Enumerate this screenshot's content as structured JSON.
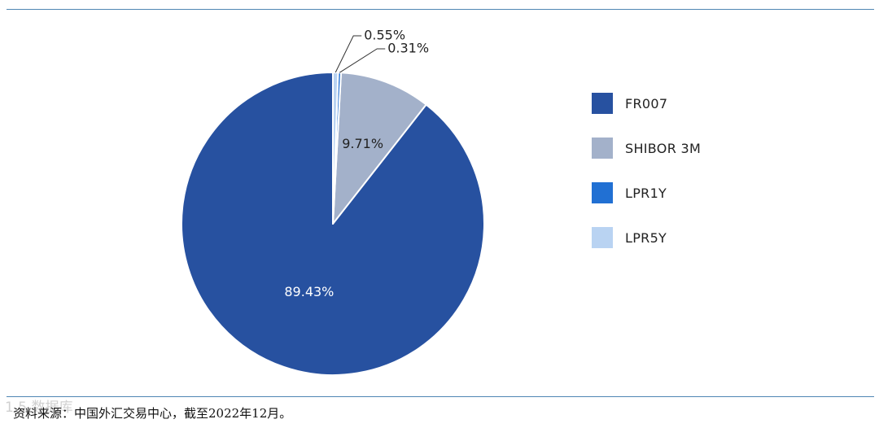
{
  "chart_data": {
    "type": "pie",
    "title": "",
    "categories": [
      "FR007",
      "SHIBOR 3M",
      "LPR1Y",
      "LPR5Y"
    ],
    "values": [
      89.43,
      9.71,
      0.31,
      0.55
    ],
    "labels": [
      "89.43%",
      "9.71%",
      "0.31%",
      "0.55%"
    ],
    "colors": [
      "#2751a0",
      "#a3b1ca",
      "#2170d3",
      "#b9d3f2"
    ],
    "label_colors": [
      "#ffffff",
      "#222222",
      "#222222",
      "#222222"
    ],
    "legend_placement": "right",
    "start": "top",
    "direction": "counterclockwise"
  },
  "source_note": "资料来源：中国外汇交易中心，截至2022年12月。",
  "watermark": "1.5 数据库"
}
